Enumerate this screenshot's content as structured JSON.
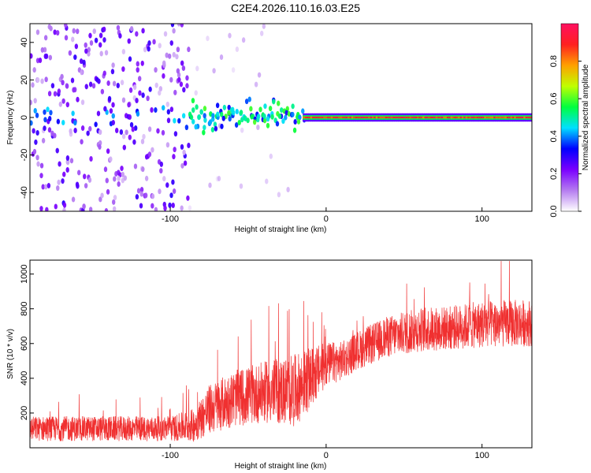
{
  "title": "C2E4.2026.110.16.03.E25",
  "chart_data": [
    {
      "type": "heatmap",
      "xlabel": "Height of straight line (km)",
      "ylabel": "Frequency (Hz)",
      "xlim": [
        -190,
        132
      ],
      "ylim": [
        -50,
        50
      ],
      "x_ticks": [
        -100,
        0,
        100
      ],
      "x_tick_labels": [
        "-100",
        "0",
        "100"
      ],
      "y_ticks": [
        -40,
        -20,
        0,
        20,
        40
      ],
      "y_tick_labels": [
        "-40",
        "-20",
        "0",
        "20",
        "40"
      ],
      "colorbar": {
        "label": "Normalized spectral amplitude",
        "range": [
          0,
          1
        ],
        "ticks": [
          0,
          0.2,
          0.4,
          0.6,
          0.8
        ],
        "tick_labels": [
          "0.0",
          "0.2",
          "0.4",
          "0.6",
          "0.8"
        ],
        "colors": [
          "#ffffff",
          "#b57cf0",
          "#7a00ff",
          "#0000ff",
          "#00e0ff",
          "#00ff40",
          "#c0ff00",
          "#ffa000",
          "#ff2020",
          "#ff1060"
        ]
      },
      "regions": [
        {
          "x": [
            -190,
            -88
          ],
          "freq_spread": 50,
          "density": 0.75,
          "amplitude": [
            0.05,
            0.3
          ]
        },
        {
          "x": [
            -88,
            -20
          ],
          "freq_spread": 50,
          "density": 0.08,
          "amplitude": [
            0.02,
            0.12
          ]
        },
        {
          "x": [
            -88,
            -15
          ],
          "freq_spread": 6,
          "density": 0.9,
          "amplitude": [
            0.3,
            0.6
          ]
        },
        {
          "x": [
            -15,
            132
          ],
          "freq_spread": 1,
          "density": 1.0,
          "amplitude": [
            0.8,
            0.95
          ]
        }
      ]
    },
    {
      "type": "line",
      "xlabel": "Height of straight line (km)",
      "ylabel": "SNR (10 * v/v)",
      "xlim": [
        -190,
        132
      ],
      "ylim": [
        0,
        1080
      ],
      "x_ticks": [
        -100,
        0,
        100
      ],
      "x_tick_labels": [
        "-100",
        "0",
        "100"
      ],
      "y_ticks": [
        200,
        400,
        600,
        800,
        1000
      ],
      "y_tick_labels": [
        "200",
        "400",
        "600",
        "800",
        "1000"
      ],
      "series": [
        {
          "color": "#f03030",
          "envelope_x": [
            -190,
            -100,
            -85,
            -75,
            -60,
            -40,
            -20,
            -10,
            0,
            10,
            20,
            40,
            60,
            80,
            100,
            132
          ],
          "envelope_mean": [
            110,
            110,
            130,
            220,
            280,
            320,
            330,
            400,
            480,
            500,
            560,
            640,
            680,
            690,
            710,
            720
          ],
          "envelope_spread": [
            90,
            90,
            120,
            180,
            200,
            220,
            260,
            220,
            160,
            140,
            140,
            150,
            160,
            160,
            170,
            170
          ]
        }
      ]
    }
  ]
}
